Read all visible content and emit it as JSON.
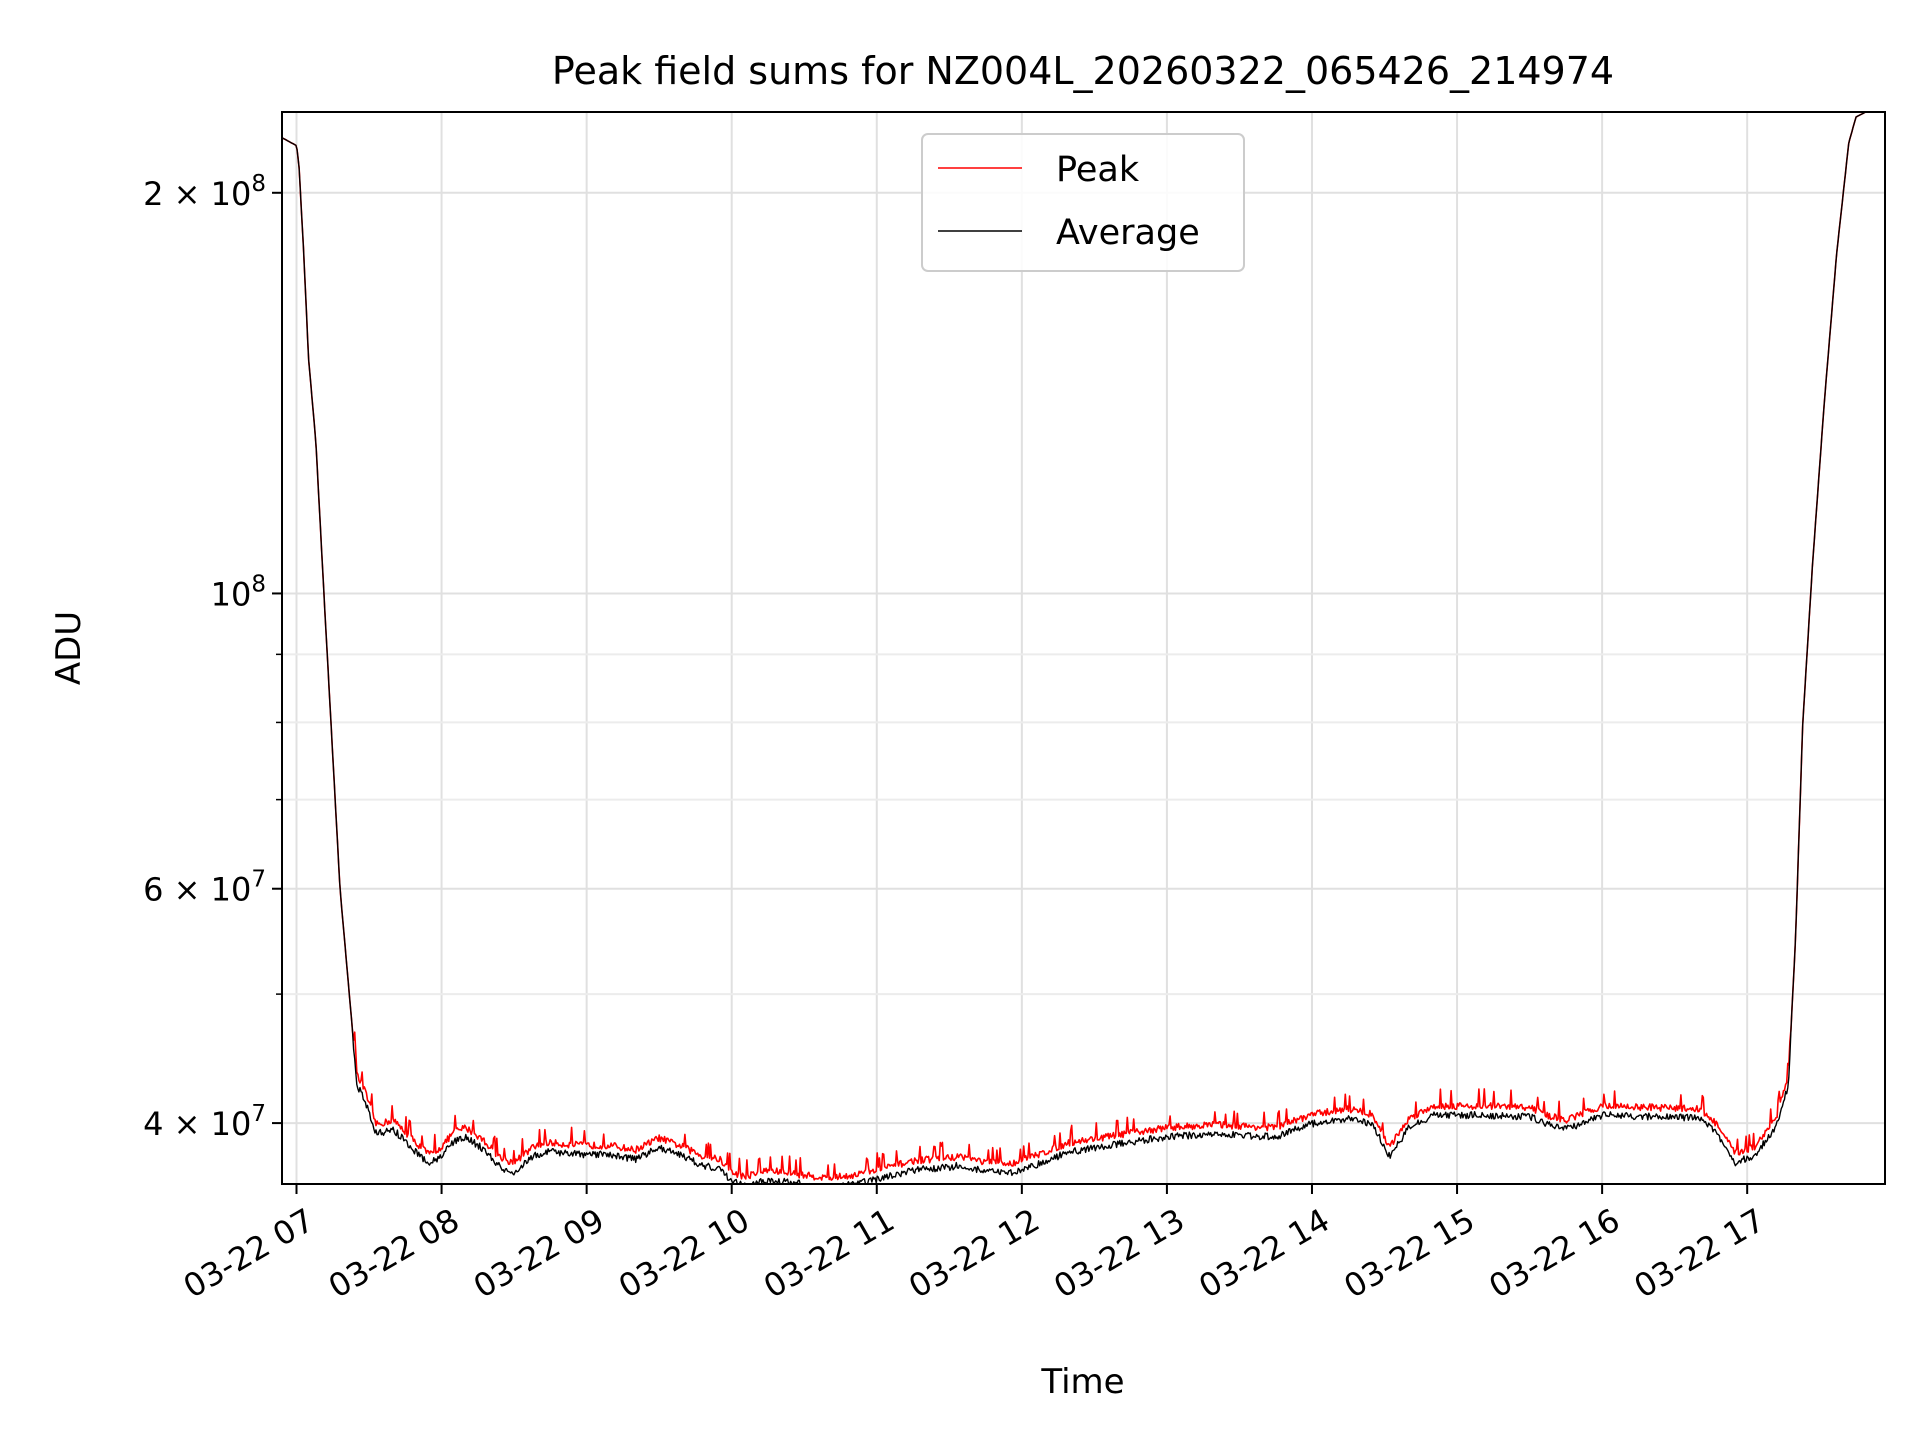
{
  "chart_data": {
    "type": "line",
    "title": "Peak field sums for NZ004L_20260322_065426_214974",
    "xlabel": "Time",
    "ylabel": "ADU",
    "yscale": "log",
    "xlim": [
      "2026-03-22 06:54",
      "2026-03-22 17:57"
    ],
    "ylim": [
      36000000,
      230000000
    ],
    "x_ticks": [
      "03-22 07",
      "03-22 08",
      "03-22 09",
      "03-22 10",
      "03-22 11",
      "03-22 12",
      "03-22 13",
      "03-22 14",
      "03-22 15",
      "03-22 16",
      "03-22 17"
    ],
    "y_ticks": [
      {
        "value": 40000000,
        "base": "4",
        "mult": "×",
        "pow": "10",
        "exp": "7"
      },
      {
        "value": 60000000,
        "base": "6",
        "mult": "×",
        "pow": "10",
        "exp": "7"
      },
      {
        "value": 100000000,
        "base": "",
        "mult": "",
        "pow": "10",
        "exp": "8"
      },
      {
        "value": 200000000,
        "base": "2",
        "mult": "×",
        "pow": "10",
        "exp": "8"
      }
    ],
    "y_minor_ticks": [
      50000000,
      70000000,
      80000000,
      90000000
    ],
    "grid": true,
    "legend": "upper center",
    "series": [
      {
        "name": "Peak",
        "color": "#ff0000",
        "noisy": true
      },
      {
        "name": "Average",
        "color": "#000000",
        "noisy": false
      }
    ],
    "x": [
      "2026-03-22 06:54",
      "2026-03-22 07:00",
      "2026-03-22 07:01",
      "2026-03-22 07:03",
      "2026-03-22 07:05",
      "2026-03-22 07:08",
      "2026-03-22 07:12",
      "2026-03-22 07:18",
      "2026-03-22 07:25",
      "2026-03-22 07:28",
      "2026-03-22 07:33",
      "2026-03-22 07:40",
      "2026-03-22 07:45",
      "2026-03-22 07:50",
      "2026-03-22 07:55",
      "2026-03-22 08:00",
      "2026-03-22 08:05",
      "2026-03-22 08:10",
      "2026-03-22 08:17",
      "2026-03-22 08:25",
      "2026-03-22 08:30",
      "2026-03-22 08:38",
      "2026-03-22 08:44",
      "2026-03-22 08:50",
      "2026-03-22 09:00",
      "2026-03-22 09:10",
      "2026-03-22 09:20",
      "2026-03-22 09:30",
      "2026-03-22 09:40",
      "2026-03-22 09:48",
      "2026-03-22 09:55",
      "2026-03-22 10:00",
      "2026-03-22 10:05",
      "2026-03-22 10:15",
      "2026-03-22 10:20",
      "2026-03-22 10:30",
      "2026-03-22 10:40",
      "2026-03-22 10:50",
      "2026-03-22 11:00",
      "2026-03-22 11:15",
      "2026-03-22 11:30",
      "2026-03-22 11:35",
      "2026-03-22 11:45",
      "2026-03-22 11:55",
      "2026-03-22 12:05",
      "2026-03-22 12:20",
      "2026-03-22 12:40",
      "2026-03-22 13:00",
      "2026-03-22 13:20",
      "2026-03-22 13:30",
      "2026-03-22 13:45",
      "2026-03-22 14:00",
      "2026-03-22 14:15",
      "2026-03-22 14:25",
      "2026-03-22 14:32",
      "2026-03-22 14:40",
      "2026-03-22 14:50",
      "2026-03-22 15:10",
      "2026-03-22 15:30",
      "2026-03-22 15:38",
      "2026-03-22 15:45",
      "2026-03-22 16:00",
      "2026-03-22 16:20",
      "2026-03-22 16:40",
      "2026-03-22 16:47",
      "2026-03-22 16:55",
      "2026-03-22 17:03",
      "2026-03-22 17:12",
      "2026-03-22 17:17",
      "2026-03-22 17:20",
      "2026-03-22 17:23",
      "2026-03-22 17:27",
      "2026-03-22 17:32",
      "2026-03-22 17:37",
      "2026-03-22 17:42",
      "2026-03-22 17:45",
      "2026-03-22 17:49",
      "2026-03-22 17:57"
    ],
    "values": [
      220000000,
      217000000,
      210000000,
      180000000,
      150000000,
      130000000,
      95000000,
      60000000,
      43000000,
      42000000,
      39500000,
      39800000,
      39000000,
      38200000,
      37500000,
      38000000,
      39000000,
      39300000,
      38500000,
      37200000,
      37000000,
      38000000,
      38300000,
      38200000,
      38100000,
      38100000,
      37800000,
      38600000,
      38000000,
      37400000,
      37200000,
      36400000,
      36100000,
      36500000,
      36400000,
      36200000,
      36000000,
      36200000,
      36500000,
      37100000,
      37300000,
      37400000,
      37000000,
      36900000,
      37400000,
      38300000,
      38800000,
      39300000,
      39500000,
      39400000,
      39300000,
      40200000,
      40600000,
      40200000,
      38000000,
      39900000,
      40800000,
      40800000,
      40700000,
      40100000,
      39800000,
      40800000,
      40700000,
      40600000,
      39600000,
      37600000,
      38000000,
      40000000,
      43000000,
      55000000,
      80000000,
      105000000,
      140000000,
      180000000,
      218000000,
      228000000,
      230000000,
      230000000
    ]
  }
}
